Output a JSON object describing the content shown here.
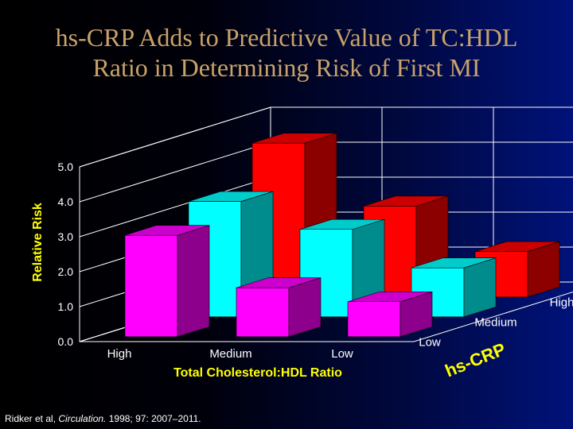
{
  "slide": {
    "title_line1": "hs-CRP Adds to Predictive Value of TC:HDL",
    "title_line2": "Ratio in Determining Risk of First MI",
    "citation_prefix": "Ridker et al, ",
    "citation_journal": "Circulation.",
    "citation_suffix": " 1998; 97: 2007–2011."
  },
  "chart_data": {
    "type": "bar",
    "subtype": "3d-grouped",
    "title": "",
    "xlabel": "Total Cholesterol:HDL Ratio",
    "ylabel": "Relative Risk",
    "zlabel": "hs-CRP",
    "ylim": [
      0,
      5
    ],
    "yticks": [
      "0.0",
      "1.0",
      "2.0",
      "3.0",
      "4.0",
      "5.0"
    ],
    "categories": [
      "High",
      "Medium",
      "Low"
    ],
    "depth_categories": [
      "Low",
      "Medium",
      "High"
    ],
    "series": [
      {
        "name": "Low",
        "color": "#ff00ff",
        "values": [
          2.9,
          1.4,
          1.0
        ]
      },
      {
        "name": "Medium",
        "color": "#00ffff",
        "values": [
          3.3,
          2.5,
          1.4
        ]
      },
      {
        "name": "High",
        "color": "#ff0000",
        "values": [
          4.4,
          2.6,
          1.3
        ]
      }
    ],
    "grid": true
  }
}
